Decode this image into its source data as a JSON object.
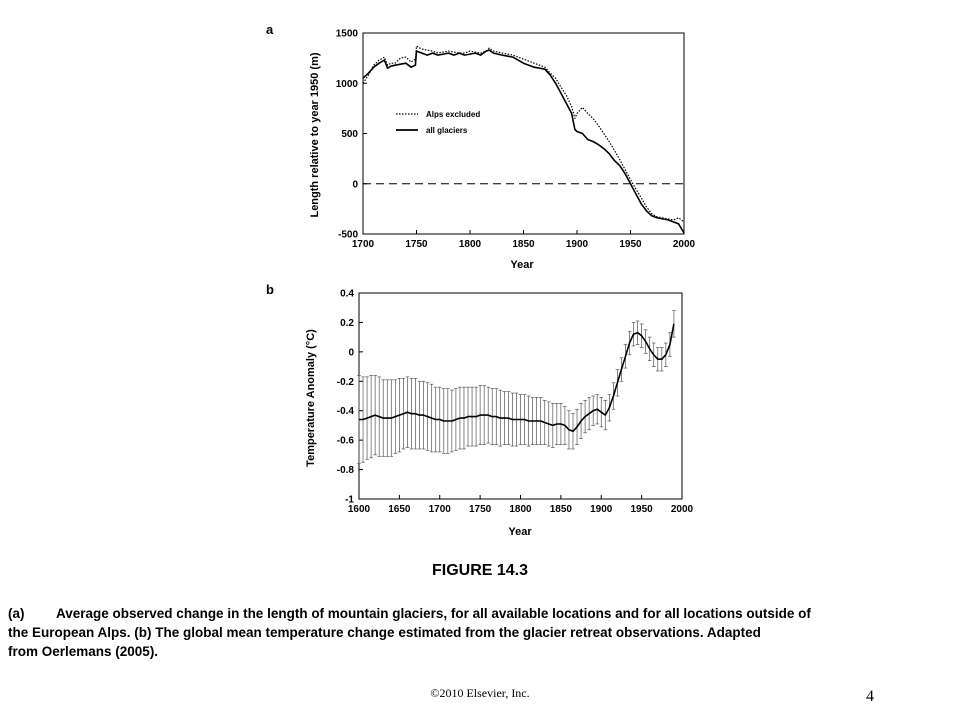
{
  "chart_data": [
    {
      "type": "line",
      "panel_label": "a",
      "xlabel": "Year",
      "ylabel": "Length relative to year 1950 (m)",
      "xlim": [
        1700,
        2000
      ],
      "ylim": [
        -500,
        1500
      ],
      "x_ticks": [
        1700,
        1750,
        1800,
        1850,
        1900,
        1950,
        2000
      ],
      "y_ticks": [
        -500,
        0,
        500,
        1000,
        1500
      ],
      "reference_line": 0,
      "legend_position": "center-left",
      "series": [
        {
          "name": "Alps excluded",
          "style": "dotted",
          "x": [
            1700,
            1705,
            1710,
            1715,
            1720,
            1723,
            1726,
            1730,
            1735,
            1740,
            1745,
            1749,
            1750,
            1755,
            1760,
            1765,
            1770,
            1775,
            1780,
            1785,
            1790,
            1795,
            1800,
            1805,
            1810,
            1815,
            1818,
            1822,
            1830,
            1840,
            1850,
            1860,
            1870,
            1875,
            1880,
            1885,
            1890,
            1895,
            1898,
            1900,
            1905,
            1910,
            1915,
            1920,
            1925,
            1930,
            1935,
            1940,
            1945,
            1950,
            1955,
            1960,
            1965,
            1970,
            1975,
            1980,
            1985,
            1990,
            1995,
            2000
          ],
          "values": [
            1000,
            1080,
            1180,
            1230,
            1260,
            1180,
            1200,
            1200,
            1250,
            1260,
            1210,
            1240,
            1370,
            1340,
            1330,
            1320,
            1300,
            1310,
            1320,
            1310,
            1300,
            1300,
            1320,
            1310,
            1300,
            1320,
            1350,
            1320,
            1300,
            1280,
            1240,
            1200,
            1160,
            1100,
            1050,
            960,
            880,
            770,
            650,
            700,
            760,
            700,
            650,
            580,
            500,
            420,
            330,
            240,
            140,
            40,
            -50,
            -140,
            -230,
            -300,
            -330,
            -340,
            -350,
            -360,
            -340,
            -380
          ]
        },
        {
          "name": "all glaciers",
          "style": "solid",
          "x": [
            1700,
            1705,
            1710,
            1715,
            1720,
            1723,
            1726,
            1730,
            1735,
            1740,
            1745,
            1749,
            1750,
            1755,
            1760,
            1765,
            1770,
            1775,
            1780,
            1785,
            1790,
            1795,
            1800,
            1805,
            1810,
            1815,
            1818,
            1822,
            1830,
            1840,
            1850,
            1860,
            1870,
            1875,
            1880,
            1885,
            1890,
            1895,
            1898,
            1900,
            1905,
            1910,
            1915,
            1920,
            1925,
            1930,
            1935,
            1940,
            1945,
            1950,
            1955,
            1960,
            1965,
            1970,
            1975,
            1980,
            1985,
            1990,
            1995,
            2000
          ],
          "values": [
            1050,
            1100,
            1160,
            1200,
            1230,
            1150,
            1170,
            1180,
            1190,
            1200,
            1160,
            1180,
            1320,
            1300,
            1280,
            1300,
            1280,
            1290,
            1300,
            1280,
            1300,
            1280,
            1290,
            1300,
            1280,
            1320,
            1330,
            1300,
            1280,
            1260,
            1200,
            1160,
            1140,
            1080,
            1000,
            900,
            800,
            700,
            540,
            520,
            500,
            440,
            420,
            390,
            350,
            300,
            230,
            180,
            100,
            0,
            -100,
            -200,
            -270,
            -320,
            -340,
            -350,
            -360,
            -380,
            -400,
            -490
          ]
        }
      ]
    },
    {
      "type": "line",
      "panel_label": "b",
      "xlabel": "Year",
      "ylabel": "Temperature Anomaly (°C)",
      "xlim": [
        1600,
        2000
      ],
      "ylim": [
        -1,
        0.4
      ],
      "x_ticks": [
        1600,
        1650,
        1700,
        1750,
        1800,
        1850,
        1900,
        1950,
        2000
      ],
      "y_ticks": [
        -1,
        -0.8,
        -0.6,
        -0.4,
        -0.2,
        0,
        0.2,
        0.4
      ],
      "y_tick_labels": [
        "-1",
        "-0.8",
        "-0.6",
        "-0.4",
        "-0.2",
        "0",
        "0.2",
        "0.4"
      ],
      "series": [
        {
          "name": "",
          "style": "solid",
          "x": [
            1600,
            1605,
            1610,
            1615,
            1620,
            1625,
            1630,
            1635,
            1640,
            1645,
            1650,
            1655,
            1660,
            1665,
            1670,
            1675,
            1680,
            1685,
            1690,
            1695,
            1700,
            1705,
            1710,
            1715,
            1720,
            1725,
            1730,
            1735,
            1740,
            1745,
            1750,
            1755,
            1760,
            1765,
            1770,
            1775,
            1780,
            1785,
            1790,
            1795,
            1800,
            1805,
            1810,
            1815,
            1820,
            1825,
            1830,
            1835,
            1840,
            1845,
            1850,
            1855,
            1860,
            1865,
            1870,
            1875,
            1880,
            1885,
            1890,
            1895,
            1900,
            1905,
            1910,
            1915,
            1920,
            1925,
            1930,
            1935,
            1940,
            1945,
            1950,
            1955,
            1960,
            1965,
            1970,
            1975,
            1980,
            1985,
            1990
          ],
          "values": [
            -0.46,
            -0.46,
            -0.45,
            -0.44,
            -0.43,
            -0.44,
            -0.45,
            -0.45,
            -0.45,
            -0.44,
            -0.43,
            -0.42,
            -0.41,
            -0.42,
            -0.42,
            -0.43,
            -0.43,
            -0.44,
            -0.45,
            -0.46,
            -0.46,
            -0.47,
            -0.47,
            -0.47,
            -0.46,
            -0.45,
            -0.45,
            -0.44,
            -0.44,
            -0.44,
            -0.43,
            -0.43,
            -0.43,
            -0.44,
            -0.44,
            -0.45,
            -0.45,
            -0.45,
            -0.46,
            -0.46,
            -0.46,
            -0.46,
            -0.47,
            -0.47,
            -0.47,
            -0.47,
            -0.48,
            -0.49,
            -0.5,
            -0.49,
            -0.49,
            -0.5,
            -0.53,
            -0.54,
            -0.51,
            -0.47,
            -0.44,
            -0.42,
            -0.4,
            -0.39,
            -0.41,
            -0.43,
            -0.38,
            -0.3,
            -0.21,
            -0.12,
            -0.03,
            0.06,
            0.12,
            0.13,
            0.11,
            0.07,
            0.02,
            -0.02,
            -0.05,
            -0.05,
            -0.02,
            0.05,
            0.19
          ],
          "error": [
            0.3,
            0.29,
            0.28,
            0.28,
            0.27,
            0.27,
            0.26,
            0.26,
            0.26,
            0.25,
            0.25,
            0.24,
            0.24,
            0.24,
            0.24,
            0.23,
            0.23,
            0.23,
            0.23,
            0.22,
            0.22,
            0.22,
            0.22,
            0.21,
            0.21,
            0.21,
            0.21,
            0.2,
            0.2,
            0.2,
            0.2,
            0.2,
            0.19,
            0.19,
            0.19,
            0.19,
            0.18,
            0.18,
            0.18,
            0.18,
            0.17,
            0.17,
            0.17,
            0.16,
            0.16,
            0.16,
            0.15,
            0.15,
            0.15,
            0.14,
            0.14,
            0.13,
            0.13,
            0.12,
            0.12,
            0.12,
            0.11,
            0.11,
            0.1,
            0.1,
            0.1,
            0.1,
            0.09,
            0.09,
            0.09,
            0.08,
            0.08,
            0.08,
            0.08,
            0.08,
            0.08,
            0.08,
            0.08,
            0.08,
            0.08,
            0.08,
            0.08,
            0.08,
            0.09
          ]
        }
      ]
    }
  ],
  "figure_title": "FIGURE 14.3",
  "caption": {
    "label": "(a)",
    "line1": "Average observed change in the length of mountain glaciers, for all available locations and for all locations outside of",
    "line2": "the European Alps. (b) The global mean temperature change estimated from the glacier retreat observations. Adapted",
    "line3": "from Oerlemans (2005)."
  },
  "footer": {
    "copyright": "©2010 Elsevier,  Inc.",
    "page_number": "4"
  }
}
